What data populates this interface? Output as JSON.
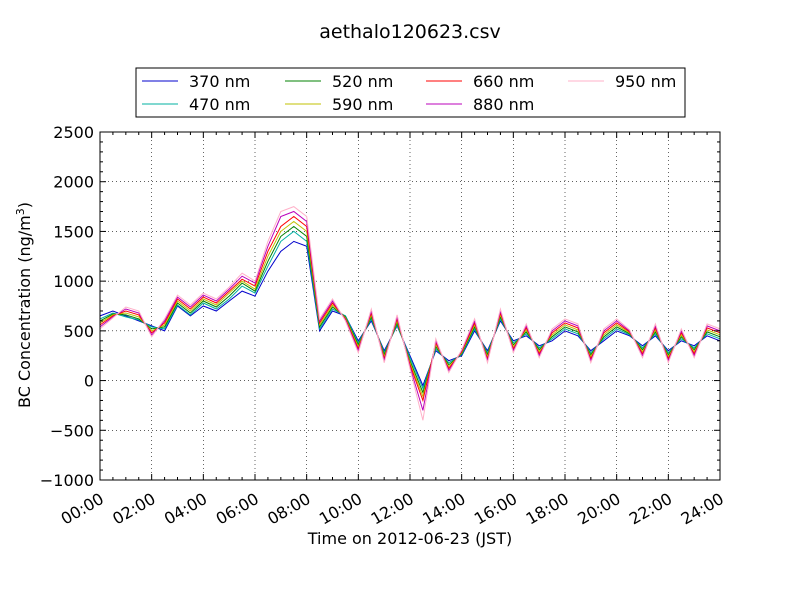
{
  "chart_data": {
    "type": "line",
    "title": "aethalo120623.csv",
    "xlabel": "Time on 2012-06-23 (JST)",
    "ylabel": "BC Concentration (ng/m³)",
    "ylabel_main": "BC Concentration (ng/m",
    "ylabel_sup": "3",
    "ylabel_end": ")",
    "xlim": [
      "00:00",
      "24:00"
    ],
    "ylim": [
      -1000,
      2500
    ],
    "grid": true,
    "legend_position": "top",
    "x_ticks": [
      "00:00",
      "02:00",
      "04:00",
      "06:00",
      "08:00",
      "10:00",
      "12:00",
      "14:00",
      "16:00",
      "18:00",
      "20:00",
      "22:00",
      "24:00"
    ],
    "y_ticks": [
      "2500",
      "2000",
      "1500",
      "1000",
      "500",
      "0",
      "−500",
      "−1000"
    ],
    "y_tick_values": [
      2500,
      2000,
      1500,
      1000,
      500,
      0,
      -500,
      -1000
    ],
    "x_hours": [
      0,
      0.5,
      1,
      1.5,
      2,
      2.5,
      3,
      3.5,
      4,
      4.5,
      5,
      5.5,
      6,
      6.5,
      7,
      7.5,
      8,
      8.5,
      9,
      9.5,
      10,
      10.5,
      11,
      11.5,
      12,
      12.5,
      13,
      13.5,
      14,
      14.5,
      15,
      15.5,
      16,
      16.5,
      17,
      17.5,
      18,
      18.5,
      19,
      19.5,
      20,
      20.5,
      21,
      21.5,
      22,
      22.5,
      23,
      23.5,
      24
    ],
    "series": [
      {
        "name": "370 nm",
        "color": "#0000cc",
        "values": [
          650,
          700,
          650,
          600,
          550,
          500,
          750,
          650,
          750,
          700,
          800,
          900,
          850,
          1100,
          1300,
          1400,
          1350,
          500,
          700,
          650,
          400,
          600,
          300,
          550,
          250,
          -50,
          300,
          200,
          250,
          500,
          300,
          600,
          400,
          450,
          350,
          400,
          500,
          450,
          300,
          400,
          500,
          450,
          350,
          450,
          300,
          400,
          350,
          450,
          400
        ]
      },
      {
        "name": "470 nm",
        "color": "#00b0a0",
        "values": [
          620,
          680,
          640,
          610,
          540,
          520,
          760,
          660,
          780,
          720,
          820,
          950,
          880,
          1150,
          1400,
          1500,
          1400,
          520,
          720,
          650,
          380,
          620,
          280,
          560,
          230,
          -80,
          320,
          180,
          260,
          520,
          280,
          620,
          380,
          470,
          330,
          420,
          520,
          470,
          280,
          420,
          520,
          460,
          330,
          470,
          280,
          420,
          330,
          470,
          420
        ]
      },
      {
        "name": "520 nm",
        "color": "#008000",
        "values": [
          600,
          670,
          660,
          620,
          520,
          540,
          780,
          680,
          800,
          740,
          850,
          980,
          900,
          1200,
          1450,
          1550,
          1450,
          540,
          740,
          640,
          360,
          640,
          260,
          580,
          200,
          -120,
          340,
          160,
          270,
          540,
          260,
          640,
          360,
          490,
          310,
          440,
          540,
          490,
          260,
          440,
          540,
          470,
          310,
          490,
          260,
          440,
          310,
          490,
          440
        ]
      },
      {
        "name": "590 nm",
        "color": "#c0c000",
        "values": [
          580,
          660,
          680,
          640,
          500,
          560,
          800,
          700,
          820,
          760,
          880,
          1000,
          920,
          1250,
          1500,
          1600,
          1500,
          560,
          760,
          630,
          340,
          660,
          240,
          600,
          180,
          -160,
          360,
          140,
          280,
          560,
          240,
          660,
          340,
          510,
          290,
          460,
          560,
          510,
          240,
          460,
          560,
          480,
          290,
          510,
          240,
          460,
          290,
          510,
          460
        ]
      },
      {
        "name": "660 nm",
        "color": "#ff0000",
        "values": [
          560,
          650,
          700,
          660,
          480,
          580,
          820,
          720,
          840,
          780,
          900,
          1020,
          950,
          1300,
          1550,
          1650,
          1550,
          580,
          780,
          620,
          320,
          680,
          220,
          620,
          160,
          -200,
          380,
          120,
          290,
          580,
          220,
          680,
          320,
          530,
          270,
          480,
          580,
          530,
          220,
          480,
          580,
          490,
          270,
          530,
          220,
          480,
          270,
          530,
          480
        ]
      },
      {
        "name": "880 nm",
        "color": "#bb00bb",
        "values": [
          540,
          640,
          720,
          680,
          460,
          600,
          840,
          740,
          860,
          800,
          920,
          1050,
          980,
          1350,
          1650,
          1700,
          1600,
          600,
          800,
          610,
          300,
          700,
          200,
          640,
          140,
          -300,
          400,
          100,
          300,
          600,
          200,
          700,
          300,
          550,
          250,
          500,
          600,
          550,
          200,
          500,
          600,
          500,
          250,
          550,
          200,
          500,
          250,
          550,
          500
        ]
      },
      {
        "name": "950 nm",
        "color": "#ffb0c8",
        "values": [
          520,
          630,
          740,
          700,
          440,
          620,
          860,
          760,
          880,
          820,
          940,
          1080,
          1000,
          1400,
          1700,
          1750,
          1650,
          620,
          820,
          600,
          280,
          720,
          180,
          660,
          120,
          -400,
          420,
          80,
          310,
          620,
          180,
          720,
          280,
          570,
          230,
          520,
          620,
          570,
          180,
          520,
          620,
          510,
          230,
          570,
          180,
          520,
          230,
          570,
          520
        ]
      }
    ]
  }
}
